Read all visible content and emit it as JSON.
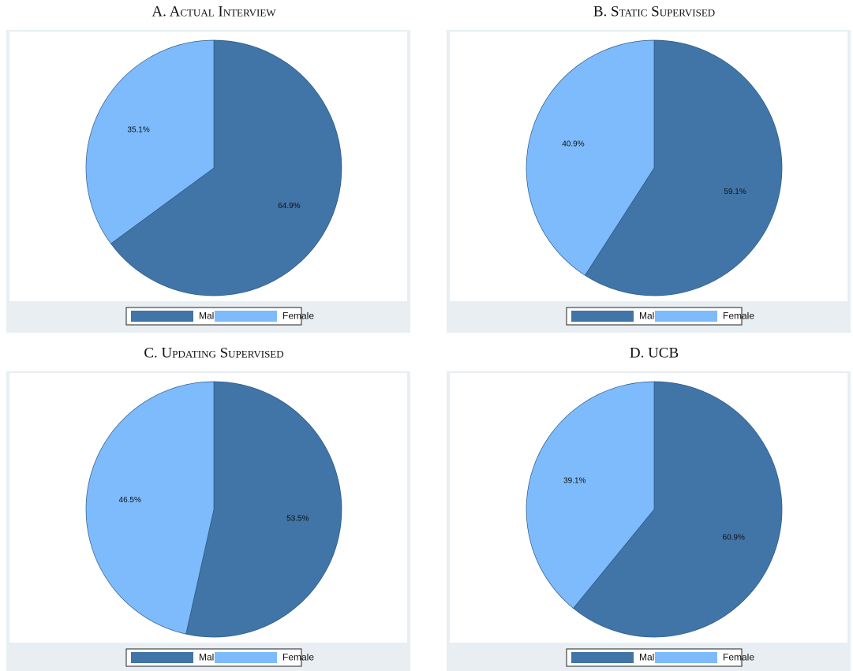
{
  "chart_data": [
    {
      "type": "pie",
      "title": "A. Actual Interview",
      "categories": [
        "Male",
        "Female"
      ],
      "values": [
        64.9,
        35.1
      ],
      "value_labels": [
        "64.9%",
        "35.1%"
      ],
      "colors": [
        "#4174a7",
        "#7dbbfc"
      ]
    },
    {
      "type": "pie",
      "title": "B. Static Supervised",
      "categories": [
        "Male",
        "Female"
      ],
      "values": [
        59.1,
        40.9
      ],
      "value_labels": [
        "59.1%",
        "40.9%"
      ],
      "colors": [
        "#4174a7",
        "#7dbbfc"
      ]
    },
    {
      "type": "pie",
      "title": "C. Updating Supervised",
      "categories": [
        "Male",
        "Female"
      ],
      "values": [
        53.5,
        46.5
      ],
      "value_labels": [
        "53.5%",
        "46.5%"
      ],
      "colors": [
        "#4174a7",
        "#7dbbfc"
      ]
    },
    {
      "type": "pie",
      "title": "D. UCB",
      "categories": [
        "Male",
        "Female"
      ],
      "values": [
        60.9,
        39.1
      ],
      "value_labels": [
        "60.9%",
        "39.1%"
      ],
      "colors": [
        "#4174a7",
        "#7dbbfc"
      ]
    }
  ]
}
